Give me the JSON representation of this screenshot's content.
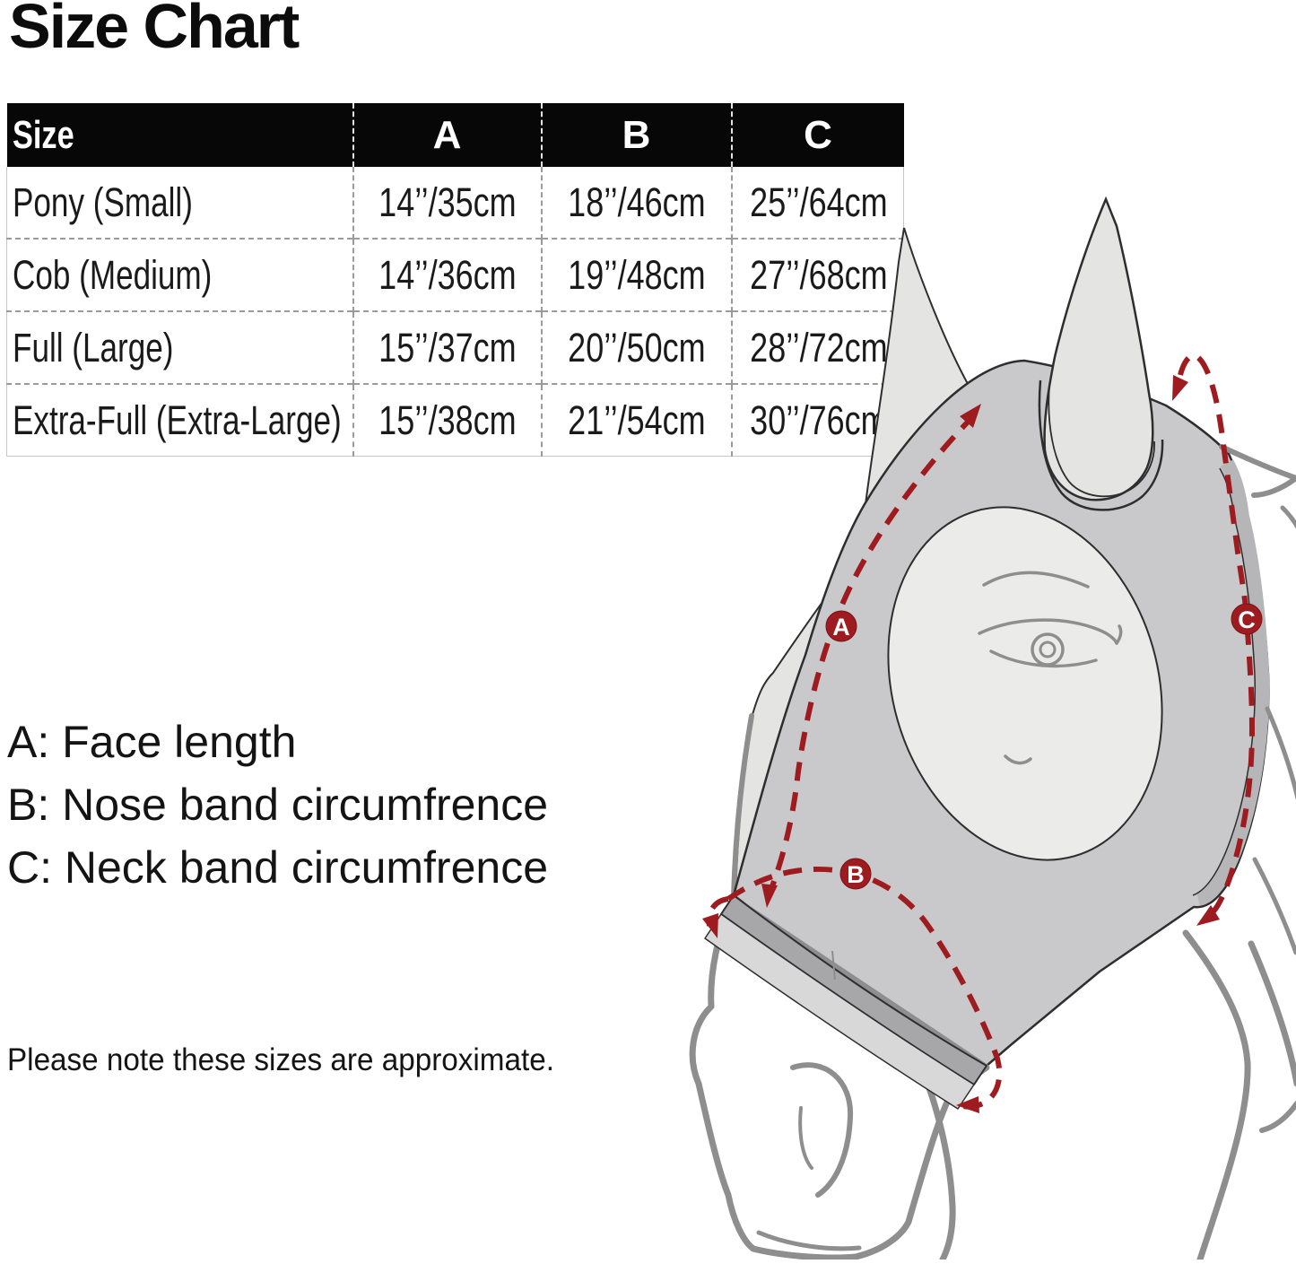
{
  "title": "Size Chart",
  "table": {
    "columns": [
      "Size",
      "A",
      "B",
      "C"
    ],
    "rows": [
      [
        "Pony (Small)",
        "14’’/35cm",
        "18’’/46cm",
        "25’’/64cm"
      ],
      [
        "Cob (Medium)",
        "14’’/36cm",
        "19’’/48cm",
        "27’’/68cm"
      ],
      [
        "Full (Large)",
        "15’’/37cm",
        "20’’/50cm",
        "28’’/72cm"
      ],
      [
        "Extra-Full (Extra-Large)",
        "15’’/38cm",
        "21’’/54cm",
        "30’’/76cm"
      ]
    ]
  },
  "legend": {
    "items": [
      "A: Face length",
      "B: Nose band circumfrence",
      "C: Neck band circumfrence"
    ]
  },
  "note": "Please note these sizes are approximate.",
  "diagram": {
    "badges": [
      "A",
      "B",
      "C"
    ],
    "colors": {
      "measurement_red": "#9e1b1f",
      "mask_gray": "#c9c9cb",
      "mask_edge_strip": "#b6b6b8",
      "ear_gray": "#e4e4e3",
      "eye_patch_gray": "#ebebea",
      "nose_band_gray": "#a7a7a9",
      "band_lip_gray": "#d8d8d8",
      "sketch_line_gray": "#8e8e8e",
      "outline_dark": "#2e2e2e",
      "header_bg": "#070707",
      "header_text": "#ffffff"
    }
  }
}
